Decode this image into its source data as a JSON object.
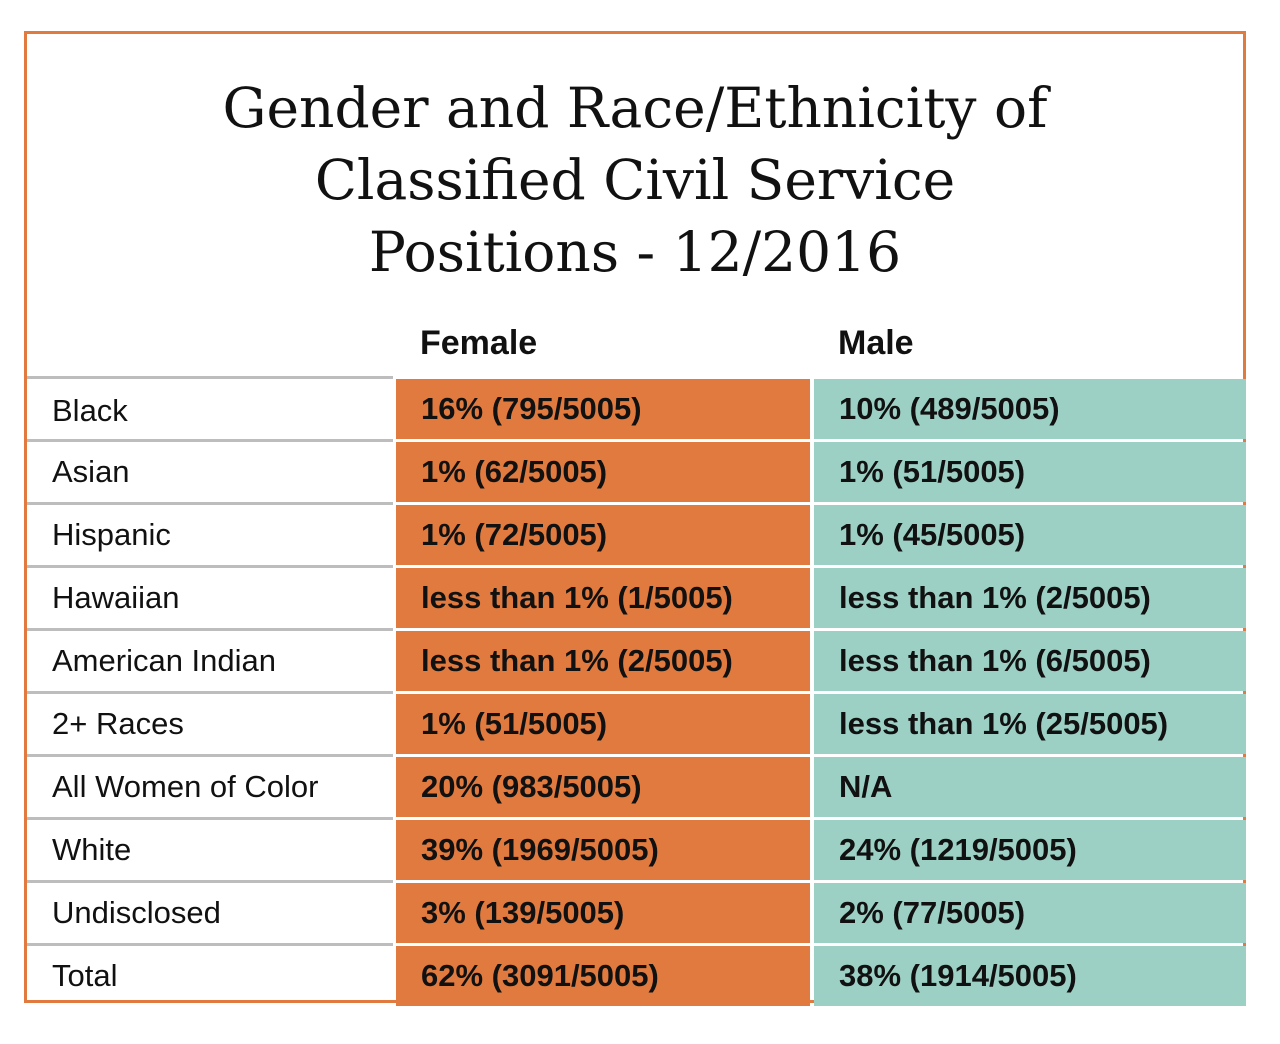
{
  "chart_data": {
    "type": "table",
    "title_lines": [
      "Gender and Race/Ethnicity of",
      "Classified Civil Service",
      "Positions - 12/2016"
    ],
    "columns": [
      "Female",
      "Male"
    ],
    "rows": [
      {
        "label": "Black",
        "female": "16% (795/5005)",
        "male": "10% (489/5005)"
      },
      {
        "label": "Asian",
        "female": "1% (62/5005)",
        "male": "1% (51/5005)"
      },
      {
        "label": "Hispanic",
        "female": "1% (72/5005)",
        "male": "1% (45/5005)"
      },
      {
        "label": "Hawaiian",
        "female": "less than 1% (1/5005)",
        "male": "less than 1% (2/5005)"
      },
      {
        "label": "American Indian",
        "female": "less than 1% (2/5005)",
        "male": "less than 1% (6/5005)"
      },
      {
        "label": "2+ Races",
        "female": "1% (51/5005)",
        "male": "less than 1% (25/5005)"
      },
      {
        "label": "All Women of Color",
        "female": "20% (983/5005)",
        "male": "N/A"
      },
      {
        "label": "White",
        "female": "39% (1969/5005)",
        "male": "24% (1219/5005)"
      },
      {
        "label": "Undisclosed",
        "female": "3% (139/5005)",
        "male": "2% (77/5005)"
      },
      {
        "label": "Total",
        "female": "62% (3091/5005)",
        "male": "38% (1914/5005)"
      }
    ]
  },
  "colors": {
    "border": "#e07a3f",
    "female_fill": "#e07a3f",
    "male_fill": "#9cd0c4",
    "row_divider": "#bdbdbd"
  }
}
